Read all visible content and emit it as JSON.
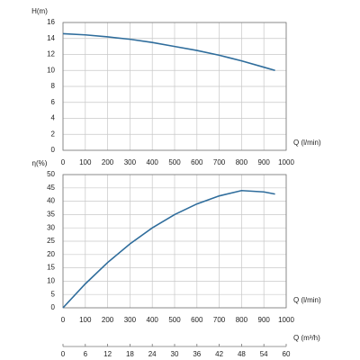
{
  "chart_data": [
    {
      "type": "line",
      "ylabel": "H(m)",
      "xlabel": "Q (l/min)",
      "x": [
        0,
        100,
        200,
        300,
        400,
        500,
        600,
        700,
        800,
        900,
        950
      ],
      "values": [
        14.6,
        14.45,
        14.2,
        13.9,
        13.5,
        13.0,
        12.5,
        11.9,
        11.2,
        10.4,
        10.0
      ],
      "color": "#2f6d9c",
      "xlim": [
        0,
        1000
      ],
      "xticks": [
        0,
        100,
        200,
        300,
        400,
        500,
        600,
        700,
        800,
        900,
        1000
      ],
      "ylim": [
        0,
        16
      ],
      "yticks": [
        0,
        2,
        4,
        6,
        8,
        10,
        12,
        14,
        16
      ],
      "grid": true
    },
    {
      "type": "line",
      "ylabel": "η(%)",
      "xlabel": "Q (l/min)",
      "x": [
        0,
        100,
        200,
        300,
        400,
        500,
        600,
        700,
        800,
        900,
        950
      ],
      "values": [
        0,
        9,
        17,
        24,
        30,
        35,
        39,
        42,
        44,
        43.5,
        42.7
      ],
      "color": "#2f6d9c",
      "xlim": [
        0,
        1000
      ],
      "xticks": [
        0,
        100,
        200,
        300,
        400,
        500,
        600,
        700,
        800,
        900,
        1000
      ],
      "ylim": [
        0,
        50
      ],
      "yticks": [
        0,
        5,
        10,
        15,
        20,
        25,
        30,
        35,
        40,
        45,
        50
      ],
      "grid": true,
      "x2label": "Q (m³/h)",
      "x2lim": [
        0,
        60
      ],
      "x2ticks": [
        0,
        6,
        12,
        18,
        24,
        30,
        36,
        42,
        48,
        54,
        60
      ]
    }
  ]
}
